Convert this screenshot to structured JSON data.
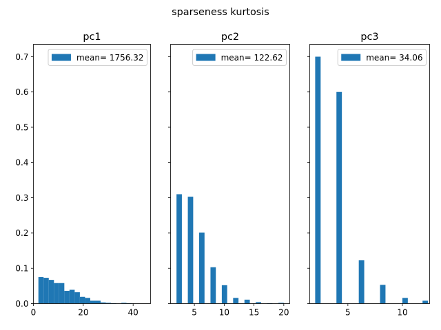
{
  "figure": {
    "title": "sparseness kurtosis",
    "bar_color": "#1f77b4",
    "shared_y": true
  },
  "chart_data": [
    {
      "type": "bar",
      "title": "pc1",
      "legend": "mean= 1756.32",
      "legend_location": "upper right",
      "xlabel": "",
      "ylabel": "",
      "xlim": [
        0,
        47
      ],
      "ylim": [
        0,
        0.735
      ],
      "xticks": [
        0,
        20,
        40
      ],
      "yticks": [
        0.0,
        0.1,
        0.2,
        0.3,
        0.4,
        0.5,
        0.6,
        0.7
      ],
      "bin_width": 2.08,
      "x": [
        3.04,
        5.12,
        7.2,
        9.28,
        11.36,
        13.44,
        15.52,
        17.6,
        19.68,
        21.76,
        23.84,
        25.92,
        28.0,
        30.08,
        32.16,
        34.24,
        36.32,
        38.4,
        40.48,
        42.56,
        44.64
      ],
      "values": [
        0.075,
        0.073,
        0.067,
        0.058,
        0.058,
        0.036,
        0.039,
        0.032,
        0.019,
        0.016,
        0.008,
        0.008,
        0.003,
        0.002,
        0.001,
        0.0,
        0.002,
        0.001,
        0.0,
        0.0,
        0.0
      ]
    },
    {
      "type": "bar",
      "title": "pc2",
      "legend": "mean= 122.62",
      "legend_location": "upper right",
      "xlabel": "",
      "ylabel": "",
      "xlim": [
        1.0,
        21.0
      ],
      "ylim": [
        0,
        0.735
      ],
      "xticks": [
        5,
        10,
        15,
        20
      ],
      "yticks": [
        0.0,
        0.1,
        0.2,
        0.3,
        0.4,
        0.5,
        0.6,
        0.7
      ],
      "bin_width": 0.9,
      "x": [
        2.45,
        4.35,
        6.25,
        8.15,
        10.05,
        11.95,
        13.85,
        15.75,
        17.65,
        19.55
      ],
      "values": [
        0.31,
        0.303,
        0.201,
        0.103,
        0.052,
        0.016,
        0.011,
        0.004,
        0.001,
        0.002
      ]
    },
    {
      "type": "bar",
      "title": "pc3",
      "legend": "mean= 34.06",
      "legend_location": "upper right",
      "xlabel": "",
      "ylabel": "",
      "xlim": [
        1.5,
        12.5
      ],
      "ylim": [
        0,
        0.735
      ],
      "xticks": [
        5,
        10
      ],
      "yticks": [
        0.0,
        0.1,
        0.2,
        0.3,
        0.4,
        0.5,
        0.6,
        0.7
      ],
      "bin_width": 0.5,
      "x": [
        2.25,
        4.2,
        6.25,
        8.2,
        10.25,
        12.1
      ],
      "values": [
        0.7,
        0.6,
        0.123,
        0.053,
        0.016,
        0.008
      ]
    }
  ]
}
